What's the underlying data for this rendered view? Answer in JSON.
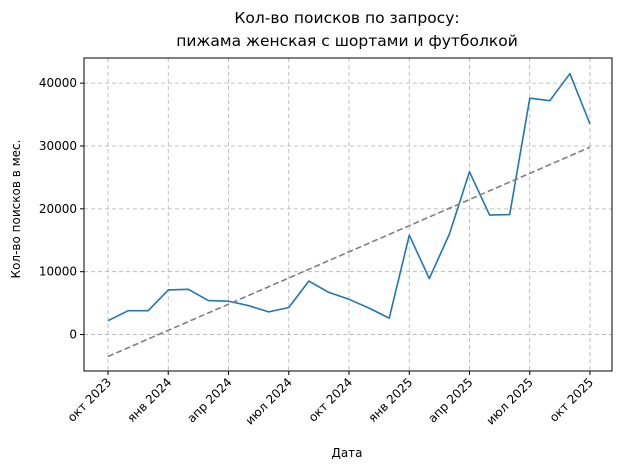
{
  "chart_data": {
    "type": "line",
    "title": [
      "Кол-во поисков по запросу:",
      "пижама женская с шортами и футболкой"
    ],
    "xlabel": "Дата",
    "ylabel": "Кол-во поисков в мес.",
    "grid": true,
    "x_ticks": [
      "окт 2023",
      "янв 2024",
      "апр 2024",
      "июл 2024",
      "окт 2024",
      "янв 2025",
      "апр 2025",
      "июл 2025",
      "окт 2025"
    ],
    "y_ticks": [
      0,
      10000,
      20000,
      30000,
      40000
    ],
    "ylim": [
      -5800,
      44000
    ],
    "series": [
      {
        "color": "#1f77b4",
        "x": [
          "2023-10",
          "2023-11",
          "2023-12",
          "2024-01",
          "2024-02",
          "2024-03",
          "2024-04",
          "2024-05",
          "2024-06",
          "2024-07",
          "2024-08",
          "2024-09",
          "2024-10",
          "2024-11",
          "2024-12",
          "2025-01",
          "2025-02",
          "2025-03",
          "2025-04",
          "2025-05",
          "2025-06",
          "2025-07",
          "2025-08",
          "2025-09",
          "2025-10"
        ],
        "values": [
          2200,
          3800,
          3800,
          7100,
          7200,
          5400,
          5300,
          4600,
          3600,
          4300,
          8500,
          6700,
          5600,
          4200,
          2600,
          15800,
          8900,
          16000,
          25900,
          19000,
          19100,
          37600,
          37200,
          41500,
          33500
        ]
      },
      {
        "color": "#808080",
        "dashed": true,
        "x": [
          "2023-10",
          "2025-10"
        ],
        "values": [
          -3500,
          29800
        ]
      }
    ]
  }
}
